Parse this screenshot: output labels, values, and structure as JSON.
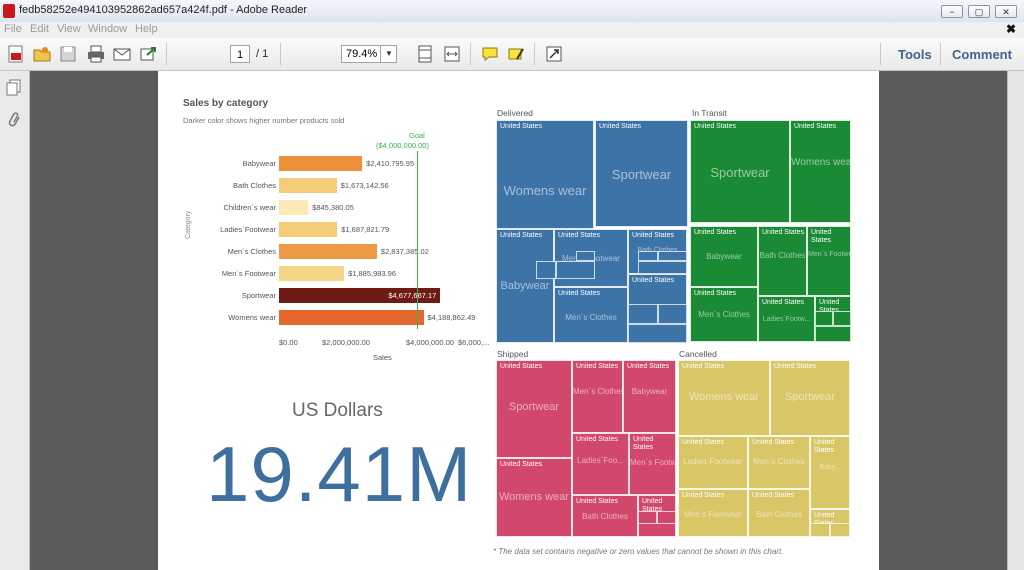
{
  "window": {
    "title": "fedb58252e494103952862ad657a424f.pdf - Adobe Reader",
    "buttons": [
      "−",
      "▢",
      "✕"
    ]
  },
  "menu": {
    "items": [
      "File",
      "Edit",
      "View",
      "Window",
      "Help"
    ],
    "close": "✖"
  },
  "toolbar": {
    "page_current": "1",
    "page_total": "/ 1",
    "zoom": "79.4%",
    "tools_label": "Tools",
    "comment_label": "Comment"
  },
  "report": {
    "chart": {
      "title": "Sales by category",
      "subtitle": "Darker color shows higher number products sold",
      "goal_label": "Goal",
      "goal_value": "($4,000,000.00)",
      "ylabel": "Category",
      "xlabel": "Sales",
      "ticks": [
        "$0.00",
        "$2,000,000.00",
        "$4,000,000.00",
        "$6,000,..."
      ]
    },
    "kpi": {
      "label": "US Dollars",
      "value": "19.41M"
    },
    "footnote": "* The data set contains negative or zero values that cannot be shown in this chart.",
    "treemap": {
      "country": "United States",
      "quadrants": [
        {
          "name": "Delivered",
          "color": "#3d74a8"
        },
        {
          "name": "In Transit",
          "color": "#1b8a35"
        },
        {
          "name": "Shipped",
          "color": "#d2486c"
        },
        {
          "name": "Cancelled",
          "color": "#d8c667"
        }
      ],
      "categories": {
        "womens_wear": "Womens wear",
        "sportwear": "Sportwear",
        "babywear": "Babywear",
        "mens_footwear": "Men´s Footwear",
        "mens_clothes": "Men´s Clothes",
        "bath_clothes": "Bath Clothes",
        "ladies_footwear": "Ladies´Footwear",
        "ladies_footw_short": "Ladies´Foo...",
        "ladies_foot_short2": "Ladies´Footw...",
        "mens_cloth_short": "Men´s Cloth...",
        "bath_cloth_short": "Bath Clothe...",
        "baby_short": "Baby...",
        "ladies_short3": "Ladies´Fo..."
      }
    }
  },
  "chart_data": {
    "type": "bar",
    "title": "Sales by category",
    "subtitle": "Darker color shows higher number products sold",
    "xlabel": "Sales",
    "ylabel": "Category",
    "categories": [
      "Babywear",
      "Bath Clothes",
      "Children´s wear",
      "Ladies´Footwear",
      "Men´s Clothes",
      "Men´s Footwear",
      "Sportwear",
      "Womens wear"
    ],
    "values": [
      2410795.95,
      1673142.56,
      845380.05,
      1687821.79,
      2837385.02,
      1885983.96,
      4677667.17,
      4188862.49
    ],
    "value_labels": [
      "$2,410,795.95",
      "$1,673,142.56",
      "$845,380.05",
      "$1,687,821.79",
      "$2,837,385.02",
      "$1,885,983.96",
      "$4,677,667.17",
      "$4,188,862.49"
    ],
    "bar_colors": [
      "#ee8f3a",
      "#f5cd78",
      "#fbeab8",
      "#f5cd78",
      "#ee9a45",
      "#f5d686",
      "#6e1b15",
      "#e4682b"
    ],
    "goal": 4000000,
    "xlim": [
      0,
      6000000
    ]
  }
}
